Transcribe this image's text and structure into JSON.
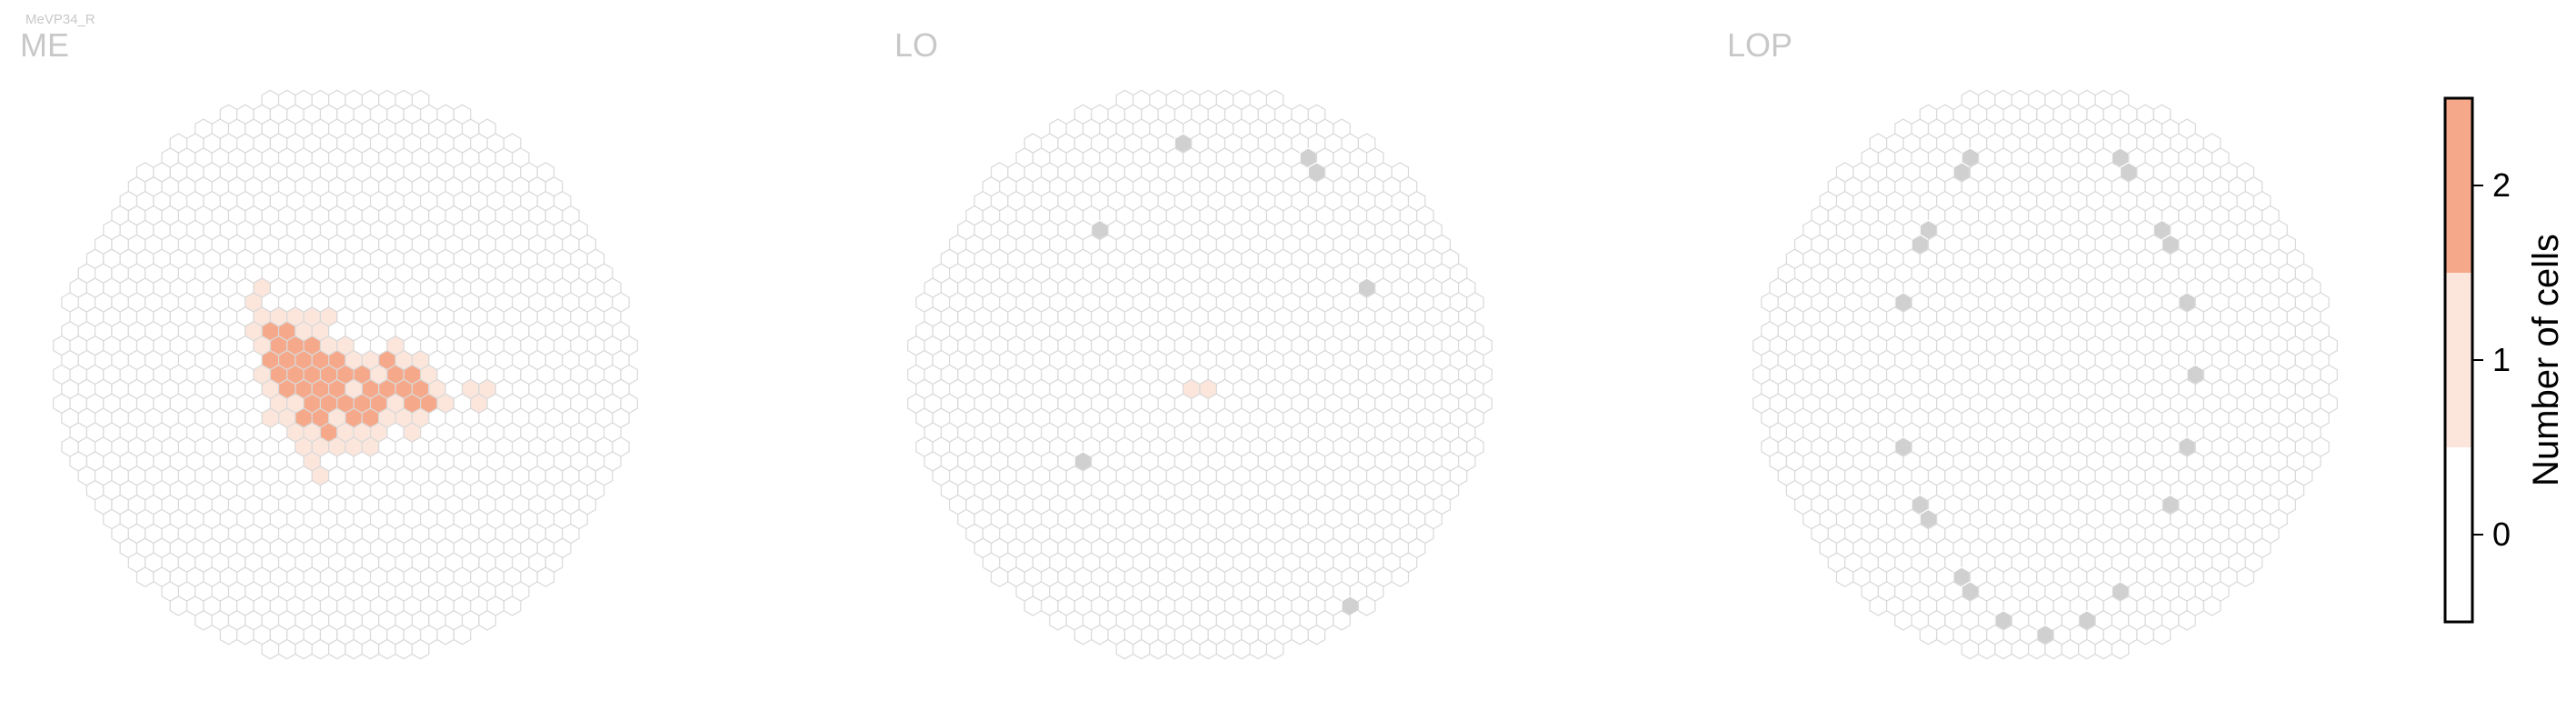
{
  "figure_label": "MeVP34_R",
  "colors": {
    "zero_fill": "#ffffff",
    "one_fill": "#fce6dc",
    "two_fill": "#f5a98a",
    "cell_stroke": "#d9d9d9",
    "outside_fill": "#d0d0d0",
    "title": "#c8c8c8"
  },
  "chart_data": {
    "type": "heatmap",
    "description_note": "hexagonal eye-map of columns; value = number of cells per column",
    "colorbar": {
      "label": "Number of cells",
      "ticks": [
        "0",
        "1",
        "2"
      ],
      "values": [
        0,
        1,
        2
      ],
      "range": [
        -0.5,
        2.5
      ]
    },
    "panels": [
      {
        "title": "ME",
        "two_cells": [
          [
            -9,
            -1
          ],
          [
            -8,
            -2
          ],
          [
            -8,
            0
          ],
          [
            -7,
            -1
          ],
          [
            -7,
            1
          ],
          [
            -7,
            -3
          ],
          [
            -6,
            -2
          ],
          [
            -6,
            0
          ],
          [
            -5,
            -1
          ],
          [
            -5,
            1
          ],
          [
            -5,
            3
          ],
          [
            -4,
            -2
          ],
          [
            -4,
            0
          ],
          [
            -4,
            2
          ],
          [
            -3,
            -1
          ],
          [
            -3,
            1
          ],
          [
            -3,
            3
          ],
          [
            -2,
            0
          ],
          [
            -2,
            2
          ],
          [
            -1,
            1
          ],
          [
            0,
            2
          ],
          [
            1,
            3
          ],
          [
            2,
            0
          ],
          [
            2,
            2
          ],
          [
            3,
            1
          ],
          [
            3,
            3
          ],
          [
            4,
            -1
          ],
          [
            4,
            2
          ],
          [
            5,
            1
          ],
          [
            5,
            -1
          ],
          [
            6,
            0
          ],
          [
            7,
            1
          ],
          [
            8,
            2
          ],
          [
            8,
            0
          ],
          [
            9,
            1
          ],
          [
            10,
            2
          ],
          [
            -9,
            -3
          ],
          [
            -1,
            -1
          ],
          [
            0,
            0
          ],
          [
            -2,
            4
          ]
        ],
        "one_cells": [
          [
            -10,
            -2
          ],
          [
            -10,
            0
          ],
          [
            -9,
            1
          ],
          [
            -8,
            2
          ],
          [
            -7,
            3
          ],
          [
            -6,
            2
          ],
          [
            -6,
            4
          ],
          [
            -5,
            5
          ],
          [
            -4,
            4
          ],
          [
            -3,
            5
          ],
          [
            -2,
            -2
          ],
          [
            -1,
            3
          ],
          [
            0,
            4
          ],
          [
            0,
            -2
          ],
          [
            1,
            1
          ],
          [
            1,
            -1
          ],
          [
            2,
            4
          ],
          [
            3,
            -1
          ],
          [
            4,
            0
          ],
          [
            4,
            4
          ],
          [
            5,
            3
          ],
          [
            6,
            2
          ],
          [
            6,
            -2
          ],
          [
            7,
            -1
          ],
          [
            7,
            3
          ],
          [
            8,
            4
          ],
          [
            9,
            3
          ],
          [
            9,
            -1
          ],
          [
            10,
            0
          ],
          [
            11,
            1
          ],
          [
            12,
            2
          ],
          [
            -10,
            -4
          ],
          [
            -8,
            -4
          ],
          [
            -6,
            -4
          ],
          [
            -4,
            -4
          ],
          [
            -2,
            -4
          ],
          [
            -9,
            3
          ],
          [
            -3,
            -3
          ],
          [
            -5,
            -3
          ],
          [
            -1,
            5
          ],
          [
            1,
            5
          ],
          [
            3,
            5
          ],
          [
            -4,
            6
          ],
          [
            -3,
            7
          ],
          [
            16,
            2
          ],
          [
            15,
            1
          ],
          [
            17,
            1
          ],
          [
            -11,
            -3
          ],
          [
            -11,
            -5
          ],
          [
            -10,
            -6
          ]
        ]
      },
      {
        "title": "LO",
        "two_cells": [],
        "one_cells": [
          [
            -1,
            1
          ],
          [
            1,
            1
          ]
        ]
      },
      {
        "title": "LOP",
        "two_cells": [],
        "one_cells": []
      }
    ]
  }
}
